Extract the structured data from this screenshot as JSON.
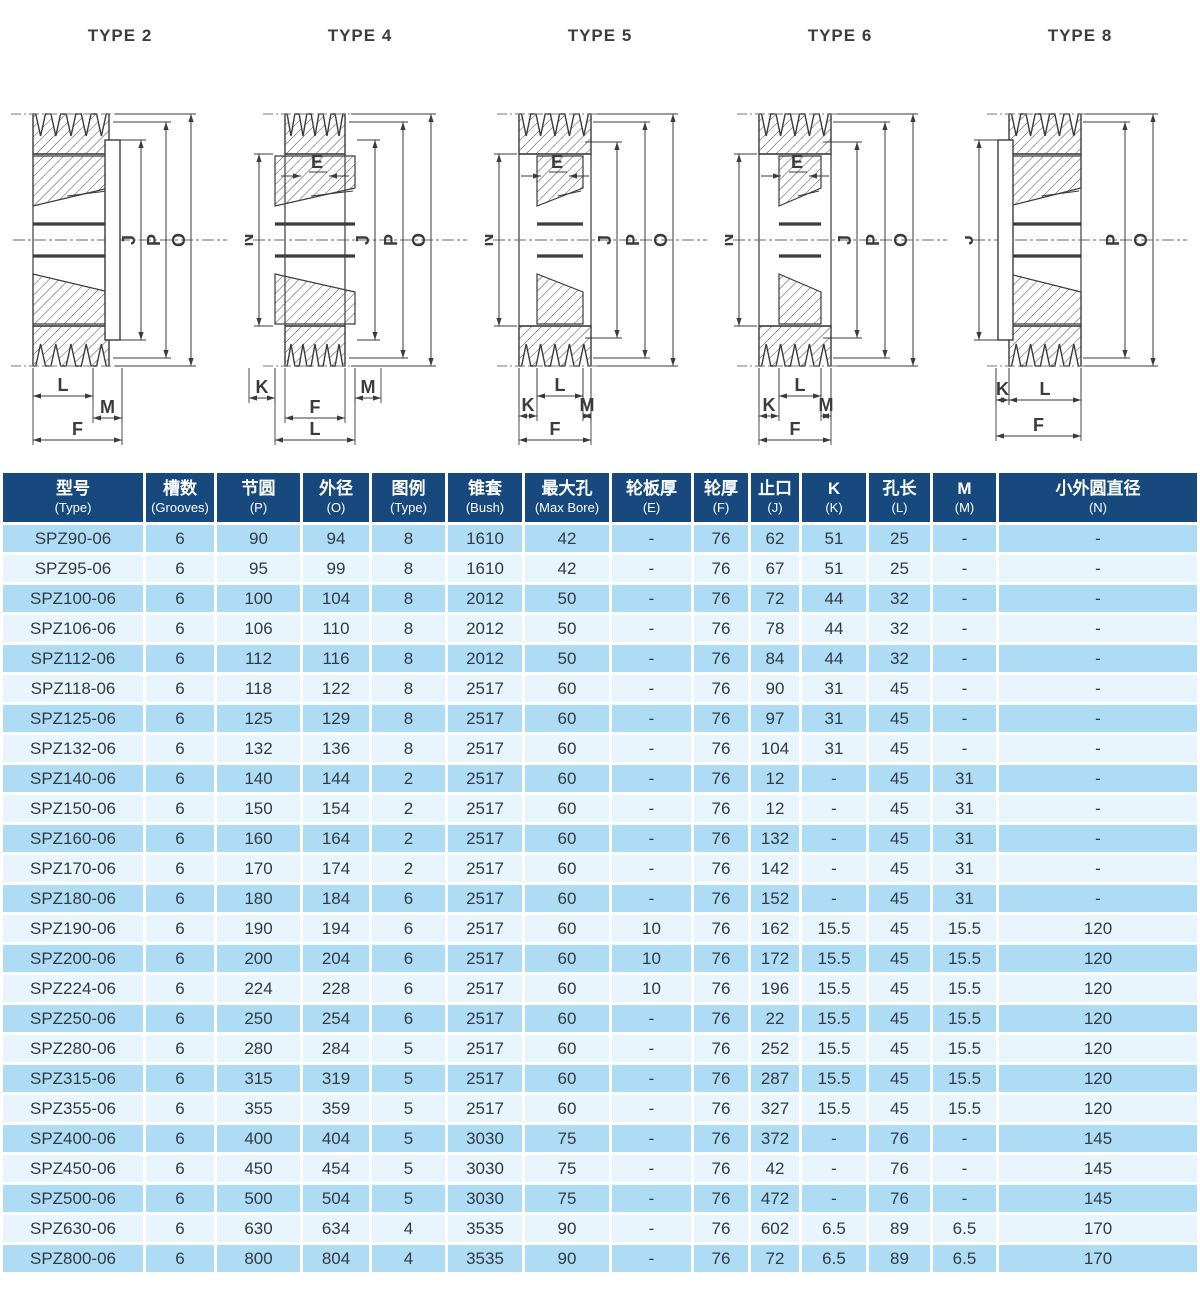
{
  "colors": {
    "header_bg": "#17497e",
    "header_text": "#ffffff",
    "row_odd": "#aedcf4",
    "row_even": "#e9f5fc",
    "cell_text": "#323a46",
    "drawing_line": "#3b3b3b"
  },
  "diagrams": [
    {
      "title": "TYPE 2",
      "dim_labels": {
        "top": "",
        "left": [],
        "right": [
          "J",
          "P",
          "O"
        ],
        "bottom": [
          "L",
          "M",
          "F"
        ]
      }
    },
    {
      "title": "TYPE 4",
      "dim_labels": {
        "top": "E",
        "left": [
          "N"
        ],
        "right": [
          "J",
          "P",
          "O"
        ],
        "bottom": [
          "K",
          "F",
          "L",
          "M"
        ]
      }
    },
    {
      "title": "TYPE 5",
      "dim_labels": {
        "top": "E",
        "left": [
          "N"
        ],
        "right": [
          "J",
          "P",
          "O"
        ],
        "bottom": [
          "L",
          "K",
          "M",
          "F"
        ]
      }
    },
    {
      "title": "TYPE 6",
      "dim_labels": {
        "top": "E",
        "left": [
          "N"
        ],
        "right": [
          "J",
          "P",
          "O"
        ],
        "bottom": [
          "L",
          "K",
          "M",
          "F"
        ]
      }
    },
    {
      "title": "TYPE 8",
      "dim_labels": {
        "top": "",
        "left": [
          "J"
        ],
        "right": [
          "P",
          "O"
        ],
        "bottom": [
          "K",
          "L",
          "F"
        ]
      }
    }
  ],
  "table": {
    "headers": [
      {
        "zh": "型号",
        "en": "(Type)"
      },
      {
        "zh": "槽数",
        "en": "(Grooves)"
      },
      {
        "zh": "节圆",
        "en": "(P)"
      },
      {
        "zh": "外径",
        "en": "(O)"
      },
      {
        "zh": "图例",
        "en": "(Type)"
      },
      {
        "zh": "锥套",
        "en": "(Bush)"
      },
      {
        "zh": "最大孔",
        "en": "(Max Bore)"
      },
      {
        "zh": "轮板厚",
        "en": "(E)"
      },
      {
        "zh": "轮厚",
        "en": "(F)"
      },
      {
        "zh": "止口",
        "en": "(J)"
      },
      {
        "zh": "K",
        "en": "(K)"
      },
      {
        "zh": "孔长",
        "en": "(L)"
      },
      {
        "zh": "M",
        "en": "(M)"
      },
      {
        "zh": "小外圆直径",
        "en": "(N)"
      }
    ],
    "rows": [
      [
        "SPZ90-06",
        "6",
        "90",
        "94",
        "8",
        "1610",
        "42",
        "-",
        "76",
        "62",
        "51",
        "25",
        "-",
        "-"
      ],
      [
        "SPZ95-06",
        "6",
        "95",
        "99",
        "8",
        "1610",
        "42",
        "-",
        "76",
        "67",
        "51",
        "25",
        "-",
        "-"
      ],
      [
        "SPZ100-06",
        "6",
        "100",
        "104",
        "8",
        "2012",
        "50",
        "-",
        "76",
        "72",
        "44",
        "32",
        "-",
        "-"
      ],
      [
        "SPZ106-06",
        "6",
        "106",
        "110",
        "8",
        "2012",
        "50",
        "-",
        "76",
        "78",
        "44",
        "32",
        "-",
        "-"
      ],
      [
        "SPZ112-06",
        "6",
        "112",
        "116",
        "8",
        "2012",
        "50",
        "-",
        "76",
        "84",
        "44",
        "32",
        "-",
        "-"
      ],
      [
        "SPZ118-06",
        "6",
        "118",
        "122",
        "8",
        "2517",
        "60",
        "-",
        "76",
        "90",
        "31",
        "45",
        "-",
        "-"
      ],
      [
        "SPZ125-06",
        "6",
        "125",
        "129",
        "8",
        "2517",
        "60",
        "-",
        "76",
        "97",
        "31",
        "45",
        "-",
        "-"
      ],
      [
        "SPZ132-06",
        "6",
        "132",
        "136",
        "8",
        "2517",
        "60",
        "-",
        "76",
        "104",
        "31",
        "45",
        "-",
        "-"
      ],
      [
        "SPZ140-06",
        "6",
        "140",
        "144",
        "2",
        "2517",
        "60",
        "-",
        "76",
        "12",
        "-",
        "45",
        "31",
        "-"
      ],
      [
        "SPZ150-06",
        "6",
        "150",
        "154",
        "2",
        "2517",
        "60",
        "-",
        "76",
        "12",
        "-",
        "45",
        "31",
        "-"
      ],
      [
        "SPZ160-06",
        "6",
        "160",
        "164",
        "2",
        "2517",
        "60",
        "-",
        "76",
        "132",
        "-",
        "45",
        "31",
        "-"
      ],
      [
        "SPZ170-06",
        "6",
        "170",
        "174",
        "2",
        "2517",
        "60",
        "-",
        "76",
        "142",
        "-",
        "45",
        "31",
        "-"
      ],
      [
        "SPZ180-06",
        "6",
        "180",
        "184",
        "6",
        "2517",
        "60",
        "-",
        "76",
        "152",
        "-",
        "45",
        "31",
        "-"
      ],
      [
        "SPZ190-06",
        "6",
        "190",
        "194",
        "6",
        "2517",
        "60",
        "10",
        "76",
        "162",
        "15.5",
        "45",
        "15.5",
        "120"
      ],
      [
        "SPZ200-06",
        "6",
        "200",
        "204",
        "6",
        "2517",
        "60",
        "10",
        "76",
        "172",
        "15.5",
        "45",
        "15.5",
        "120"
      ],
      [
        "SPZ224-06",
        "6",
        "224",
        "228",
        "6",
        "2517",
        "60",
        "10",
        "76",
        "196",
        "15.5",
        "45",
        "15.5",
        "120"
      ],
      [
        "SPZ250-06",
        "6",
        "250",
        "254",
        "6",
        "2517",
        "60",
        "-",
        "76",
        "22",
        "15.5",
        "45",
        "15.5",
        "120"
      ],
      [
        "SPZ280-06",
        "6",
        "280",
        "284",
        "5",
        "2517",
        "60",
        "-",
        "76",
        "252",
        "15.5",
        "45",
        "15.5",
        "120"
      ],
      [
        "SPZ315-06",
        "6",
        "315",
        "319",
        "5",
        "2517",
        "60",
        "-",
        "76",
        "287",
        "15.5",
        "45",
        "15.5",
        "120"
      ],
      [
        "SPZ355-06",
        "6",
        "355",
        "359",
        "5",
        "2517",
        "60",
        "-",
        "76",
        "327",
        "15.5",
        "45",
        "15.5",
        "120"
      ],
      [
        "SPZ400-06",
        "6",
        "400",
        "404",
        "5",
        "3030",
        "75",
        "-",
        "76",
        "372",
        "-",
        "76",
        "-",
        "145"
      ],
      [
        "SPZ450-06",
        "6",
        "450",
        "454",
        "5",
        "3030",
        "75",
        "-",
        "76",
        "42",
        "-",
        "76",
        "-",
        "145"
      ],
      [
        "SPZ500-06",
        "6",
        "500",
        "504",
        "5",
        "3030",
        "75",
        "-",
        "76",
        "472",
        "-",
        "76",
        "-",
        "145"
      ],
      [
        "SPZ630-06",
        "6",
        "630",
        "634",
        "4",
        "3535",
        "90",
        "-",
        "76",
        "602",
        "6.5",
        "89",
        "6.5",
        "170"
      ],
      [
        "SPZ800-06",
        "6",
        "800",
        "804",
        "4",
        "3535",
        "90",
        "-",
        "76",
        "72",
        "6.5",
        "89",
        "6.5",
        "170"
      ]
    ]
  }
}
